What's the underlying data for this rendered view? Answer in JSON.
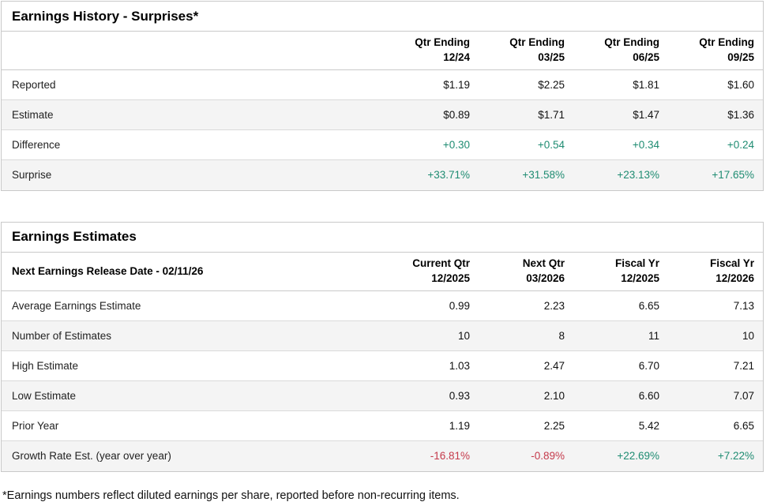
{
  "colors": {
    "positive_text": "#1f8c72",
    "negative_text": "#c53a4b",
    "table_border": "#c9c9c9",
    "row_divider": "#dadada",
    "alt_row_bg": "#f4f4f4",
    "title_text": "#000000"
  },
  "history": {
    "title": "Earnings History - Surprises*",
    "columns": [
      "Qtr Ending\n12/24",
      "Qtr Ending\n03/25",
      "Qtr Ending\n06/25",
      "Qtr Ending\n09/25"
    ],
    "rows": [
      {
        "label": "Reported",
        "values": [
          "$1.19",
          "$2.25",
          "$1.81",
          "$1.60"
        ]
      },
      {
        "label": "Estimate",
        "values": [
          "$0.89",
          "$1.71",
          "$1.47",
          "$1.36"
        ]
      },
      {
        "label": "Difference",
        "values": [
          "+0.30",
          "+0.54",
          "+0.34",
          "+0.24"
        ],
        "tones": [
          "pos",
          "pos",
          "pos",
          "pos"
        ]
      },
      {
        "label": "Surprise",
        "values": [
          "+33.71%",
          "+31.58%",
          "+23.13%",
          "+17.65%"
        ],
        "tones": [
          "pos",
          "pos",
          "pos",
          "pos"
        ]
      }
    ]
  },
  "estimates": {
    "title": "Earnings Estimates",
    "header_label": "Next Earnings Release Date - 02/11/26",
    "columns": [
      "Current Qtr\n12/2025",
      "Next Qtr\n03/2026",
      "Fiscal Yr\n12/2025",
      "Fiscal Yr\n12/2026"
    ],
    "rows": [
      {
        "label": "Average Earnings Estimate",
        "values": [
          "0.99",
          "2.23",
          "6.65",
          "7.13"
        ]
      },
      {
        "label": "Number of Estimates",
        "values": [
          "10",
          "8",
          "11",
          "10"
        ]
      },
      {
        "label": "High Estimate",
        "values": [
          "1.03",
          "2.47",
          "6.70",
          "7.21"
        ]
      },
      {
        "label": "Low Estimate",
        "values": [
          "0.93",
          "2.10",
          "6.60",
          "7.07"
        ]
      },
      {
        "label": "Prior Year",
        "values": [
          "1.19",
          "2.25",
          "5.42",
          "6.65"
        ]
      },
      {
        "label": "Growth Rate Est. (year over year)",
        "values": [
          "-16.81%",
          "-0.89%",
          "+22.69%",
          "+7.22%"
        ],
        "tones": [
          "neg",
          "neg",
          "pos",
          "pos"
        ]
      }
    ]
  },
  "footnote": "*Earnings numbers reflect diluted earnings per share, reported before non-recurring items."
}
